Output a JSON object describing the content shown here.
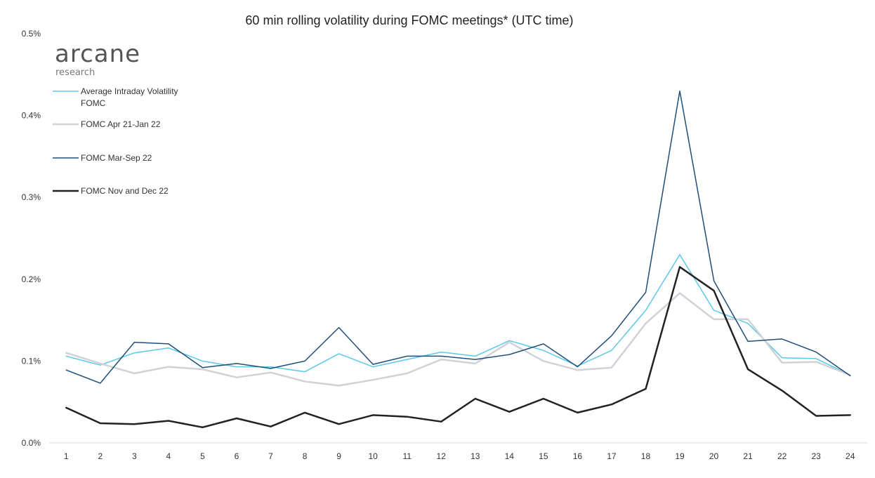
{
  "chart_data": {
    "type": "line",
    "title": "60 min rolling volatility during FOMC meetings* (UTC time)",
    "x": [
      1,
      2,
      3,
      4,
      5,
      6,
      7,
      8,
      9,
      10,
      11,
      12,
      13,
      14,
      15,
      16,
      17,
      18,
      19,
      20,
      21,
      22,
      23,
      24
    ],
    "ylim": [
      0,
      0.5
    ],
    "yticks": [
      "0.0%",
      "0.1%",
      "0.2%",
      "0.3%",
      "0.4%",
      "0.5%"
    ],
    "ytick_values": [
      0,
      0.1,
      0.2,
      0.3,
      0.4,
      0.5
    ],
    "legend_position": "top-left",
    "series": [
      {
        "name": "Average Intraday Volatility FOMC",
        "legend_lines": [
          "Average Intraday Volatility",
          "FOMC"
        ],
        "color": "#5bc8ea",
        "width": 1.5,
        "values": [
          0.106,
          0.095,
          0.11,
          0.116,
          0.1,
          0.093,
          0.093,
          0.087,
          0.109,
          0.093,
          0.102,
          0.111,
          0.106,
          0.125,
          0.113,
          0.094,
          0.113,
          0.162,
          0.23,
          0.162,
          0.146,
          0.104,
          0.103,
          0.083
        ]
      },
      {
        "name": "FOMC Apr 21-Jan 22",
        "legend_lines": [
          "FOMC Apr 21-Jan 22"
        ],
        "color": "#cfd2d6",
        "width": 2.5,
        "values": [
          0.11,
          0.097,
          0.085,
          0.093,
          0.09,
          0.08,
          0.086,
          0.075,
          0.07,
          0.077,
          0.085,
          0.102,
          0.097,
          0.123,
          0.1,
          0.089,
          0.092,
          0.146,
          0.183,
          0.151,
          0.151,
          0.098,
          0.099,
          0.083
        ]
      },
      {
        "name": "FOMC Mar-Sep 22",
        "legend_lines": [
          "FOMC Mar-Sep 22"
        ],
        "color": "#1f4e79",
        "width": 1.5,
        "values": [
          0.089,
          0.073,
          0.123,
          0.121,
          0.092,
          0.097,
          0.091,
          0.1,
          0.141,
          0.096,
          0.106,
          0.106,
          0.102,
          0.108,
          0.121,
          0.093,
          0.131,
          0.184,
          0.43,
          0.198,
          0.124,
          0.127,
          0.111,
          0.082
        ]
      },
      {
        "name": "FOMC Nov and Dec 22",
        "legend_lines": [
          "FOMC Nov and Dec 22"
        ],
        "color": "#222222",
        "width": 2.5,
        "values": [
          0.043,
          0.024,
          0.023,
          0.027,
          0.019,
          0.03,
          0.02,
          0.037,
          0.023,
          0.034,
          0.032,
          0.026,
          0.054,
          0.038,
          0.054,
          0.037,
          0.047,
          0.066,
          0.215,
          0.186,
          0.09,
          0.064,
          0.033,
          0.034
        ]
      }
    ]
  },
  "logo": {
    "main": "arcane",
    "sub": "research"
  }
}
